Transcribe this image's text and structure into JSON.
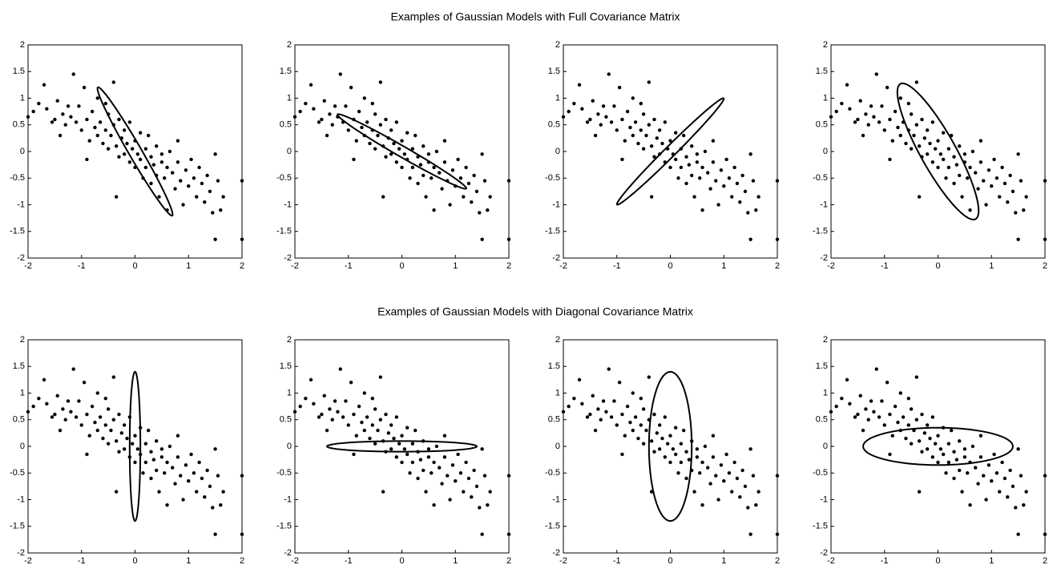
{
  "chart_data": {
    "type": "scatter",
    "color": "#000000",
    "x": [
      -2,
      -1.9,
      -1.8,
      -1.7,
      -1.65,
      -1.55,
      -1.5,
      -1.45,
      -1.4,
      -1.35,
      -1.3,
      -1.2,
      -1.15,
      -1.1,
      -1.05,
      -1.0,
      -0.95,
      -0.9,
      -0.85,
      -0.8,
      -0.75,
      -0.7,
      -0.7,
      -0.65,
      -0.6,
      -0.55,
      -0.55,
      -0.5,
      -0.5,
      -0.45,
      -0.4,
      -0.4,
      -0.35,
      -0.3,
      -0.3,
      -0.25,
      -0.2,
      -0.2,
      -0.15,
      -0.1,
      -0.1,
      -0.05,
      0,
      0,
      0.05,
      0.1,
      0.1,
      0.15,
      0.2,
      0.2,
      0.25,
      0.3,
      0.3,
      0.35,
      0.4,
      0.4,
      0.45,
      0.5,
      0.5,
      0.55,
      0.6,
      0.6,
      0.65,
      0.7,
      0.75,
      0.8,
      0.85,
      0.9,
      0.95,
      1.0,
      1.05,
      1.1,
      1.15,
      1.2,
      1.25,
      1.3,
      1.35,
      1.4,
      1.45,
      1.5,
      1.5,
      1.55,
      1.6,
      1.65,
      2,
      2,
      -0.9,
      -0.35,
      0.8,
      -1.25
    ],
    "y": [
      0.65,
      0.75,
      0.9,
      1.25,
      0.8,
      0.55,
      0.6,
      0.95,
      0.3,
      0.7,
      0.5,
      0.65,
      1.45,
      0.55,
      0.85,
      0.4,
      1.2,
      0.6,
      0.2,
      0.75,
      0.45,
      1.0,
      0.3,
      0.55,
      0.15,
      0.9,
      0.4,
      0.7,
      0.05,
      0.3,
      1.3,
      0.5,
      0.1,
      -0.1,
      0.6,
      0.25,
      -0.05,
      0.4,
      0.15,
      -0.2,
      0.55,
      0.05,
      -0.3,
      0.2,
      -0.05,
      0.35,
      -0.15,
      -0.5,
      0.05,
      -0.3,
      0.3,
      -0.1,
      -0.6,
      -0.25,
      0.1,
      -0.45,
      -0.85,
      -0.2,
      -0.05,
      -0.5,
      -0.3,
      -1.1,
      0.0,
      -0.4,
      -0.7,
      -0.2,
      -0.55,
      -1.0,
      -0.35,
      -0.65,
      -0.15,
      -0.5,
      -0.85,
      -0.3,
      -0.6,
      -0.95,
      -0.45,
      -0.75,
      -1.15,
      -0.05,
      -1.65,
      -0.55,
      -1.1,
      -0.85,
      -0.55,
      -1.65,
      -0.15,
      -0.85,
      0.2,
      0.85
    ],
    "xlim": [
      -2,
      2
    ],
    "ylim": [
      -2,
      2
    ],
    "xticks": [
      -2,
      -1,
      0,
      1,
      2
    ],
    "yticks": [
      -2,
      -1.5,
      -1,
      -0.5,
      0,
      0.5,
      1,
      1.5,
      2
    ],
    "rows": [
      {
        "title": "Examples of Gaussian Models with Full Covariance Matrix",
        "ellipses": [
          {
            "cx": 0,
            "cy": 0,
            "rx": 1.39,
            "ry": 0.12,
            "angle": -60
          },
          {
            "cx": 0,
            "cy": 0,
            "rx": 1.39,
            "ry": 0.1,
            "angle": -30
          },
          {
            "cx": 0,
            "cy": 0,
            "rx": 1.41,
            "ry": 0.1,
            "angle": 45
          },
          {
            "cx": 0,
            "cy": 0,
            "rx": 1.45,
            "ry": 0.33,
            "angle": -61
          }
        ]
      },
      {
        "title": "Examples of Gaussian Models with Diagonal Covariance Matrix",
        "ellipses": [
          {
            "cx": 0,
            "cy": 0,
            "rx": 0.1,
            "ry": 1.4,
            "angle": 0
          },
          {
            "cx": 0,
            "cy": 0,
            "rx": 1.4,
            "ry": 0.1,
            "angle": 0
          },
          {
            "cx": 0,
            "cy": 0,
            "rx": 0.4,
            "ry": 1.4,
            "angle": 0
          },
          {
            "cx": 0,
            "cy": 0,
            "rx": 1.4,
            "ry": 0.35,
            "angle": 0
          }
        ]
      }
    ]
  }
}
